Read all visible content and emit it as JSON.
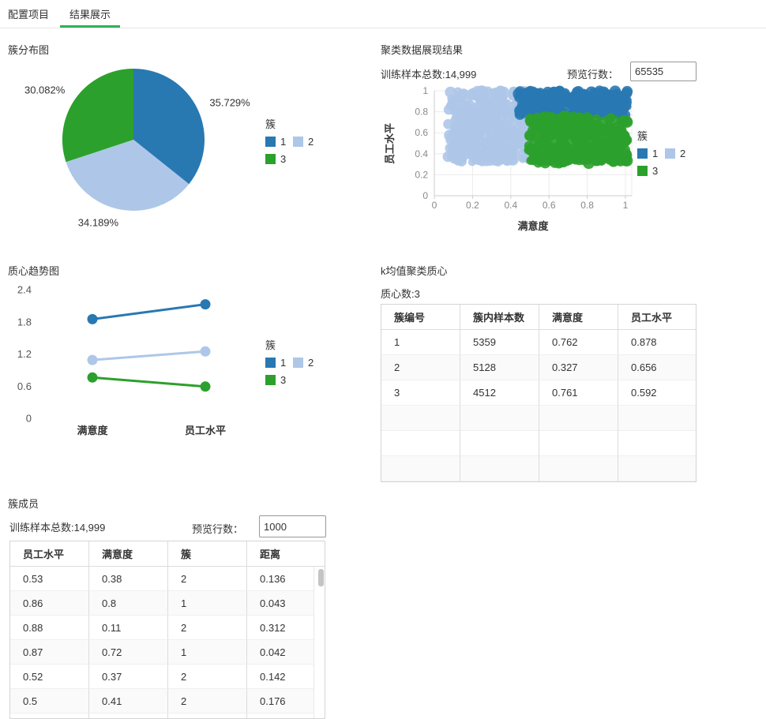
{
  "tabs": [
    {
      "label": "配置项目",
      "active": false
    },
    {
      "label": "结果展示",
      "active": true
    }
  ],
  "colors": {
    "accent_green": "#2bb357",
    "cluster1": "#2878b2",
    "cluster2": "#aec7e8",
    "cluster3": "#2ca02c"
  },
  "legend": {
    "title": "簇",
    "items": [
      {
        "label": "1",
        "color": "#2878b2"
      },
      {
        "label": "2",
        "color": "#aec7e8"
      },
      {
        "label": "3",
        "color": "#2ca02c"
      }
    ]
  },
  "pie_section": {
    "title": "簇分布图"
  },
  "scatter_section": {
    "title": "聚类数据展现结果",
    "total_label": "训练样本总数:14,999",
    "preview_label": "预览行数：",
    "preview_value": "65535"
  },
  "trend_section": {
    "title": "质心趋势图"
  },
  "centroid_section": {
    "title": "k均值聚类质心",
    "subtitle": "质心数:3",
    "table": {
      "headers": [
        "簇编号",
        "簇内样本数",
        "满意度",
        "员工水平"
      ],
      "rows": [
        [
          "1",
          "5359",
          "0.762",
          "0.878"
        ],
        [
          "2",
          "5128",
          "0.327",
          "0.656"
        ],
        [
          "3",
          "4512",
          "0.761",
          "0.592"
        ]
      ]
    }
  },
  "members_section": {
    "title": "簇成员",
    "total_label": "训练样本总数:14,999",
    "preview_label": "预览行数：",
    "preview_value": "1000",
    "table": {
      "headers": [
        "员工水平",
        "满意度",
        "簇",
        "距离"
      ],
      "rows": [
        [
          "0.53",
          "0.38",
          "2",
          "0.136"
        ],
        [
          "0.86",
          "0.8",
          "1",
          "0.043"
        ],
        [
          "0.88",
          "0.11",
          "2",
          "0.312"
        ],
        [
          "0.87",
          "0.72",
          "1",
          "0.042"
        ],
        [
          "0.52",
          "0.37",
          "2",
          "0.142"
        ],
        [
          "0.5",
          "0.41",
          "2",
          "0.176"
        ]
      ]
    }
  },
  "chart_data": [
    {
      "type": "pie",
      "title": "簇分布图",
      "legend_title": "簇",
      "labels": [
        "1",
        "2",
        "3"
      ],
      "values": [
        35.729,
        34.189,
        30.082
      ],
      "unit": "%",
      "colors": [
        "#2878b2",
        "#aec7e8",
        "#2ca02c"
      ],
      "start_angle": "top",
      "direction": "clockwise"
    },
    {
      "type": "scatter",
      "title": "聚类数据展现结果",
      "xlabel": "满意度",
      "ylabel": "员工水平",
      "xlim": [
        0,
        1
      ],
      "ylim": [
        0,
        1
      ],
      "xticks": [
        0,
        0.2,
        0.4,
        0.6,
        0.8,
        1
      ],
      "yticks": [
        0,
        0.2,
        0.4,
        0.6,
        0.8,
        1
      ],
      "grid": true,
      "legend_title": "簇",
      "clusters": [
        {
          "name": "2",
          "color": "#aec7e8",
          "x_range": [
            0.07,
            0.5
          ],
          "y_range": [
            0.32,
            1.0
          ],
          "n": 380
        },
        {
          "name": "1",
          "color": "#2878b2",
          "x_range": [
            0.44,
            1.01
          ],
          "y_range": [
            0.76,
            1.0
          ],
          "n": 330
        },
        {
          "name": "3",
          "color": "#2ca02c",
          "x_range": [
            0.49,
            1.01
          ],
          "y_range": [
            0.31,
            0.76
          ],
          "n": 360
        }
      ]
    },
    {
      "type": "line",
      "title": "质心趋势图",
      "categories": [
        "满意度",
        "员工水平"
      ],
      "ylim": [
        0,
        2.4
      ],
      "yticks": [
        0,
        0.6,
        1.2,
        1.8,
        2.4
      ],
      "stacked": true,
      "legend_title": "簇",
      "series": [
        {
          "name": "1",
          "color": "#2878b2",
          "values": [
            1.85,
            2.126
          ]
        },
        {
          "name": "2",
          "color": "#aec7e8",
          "values": [
            1.088,
            1.248
          ]
        },
        {
          "name": "3",
          "color": "#2ca02c",
          "values": [
            0.761,
            0.592
          ]
        }
      ]
    }
  ]
}
